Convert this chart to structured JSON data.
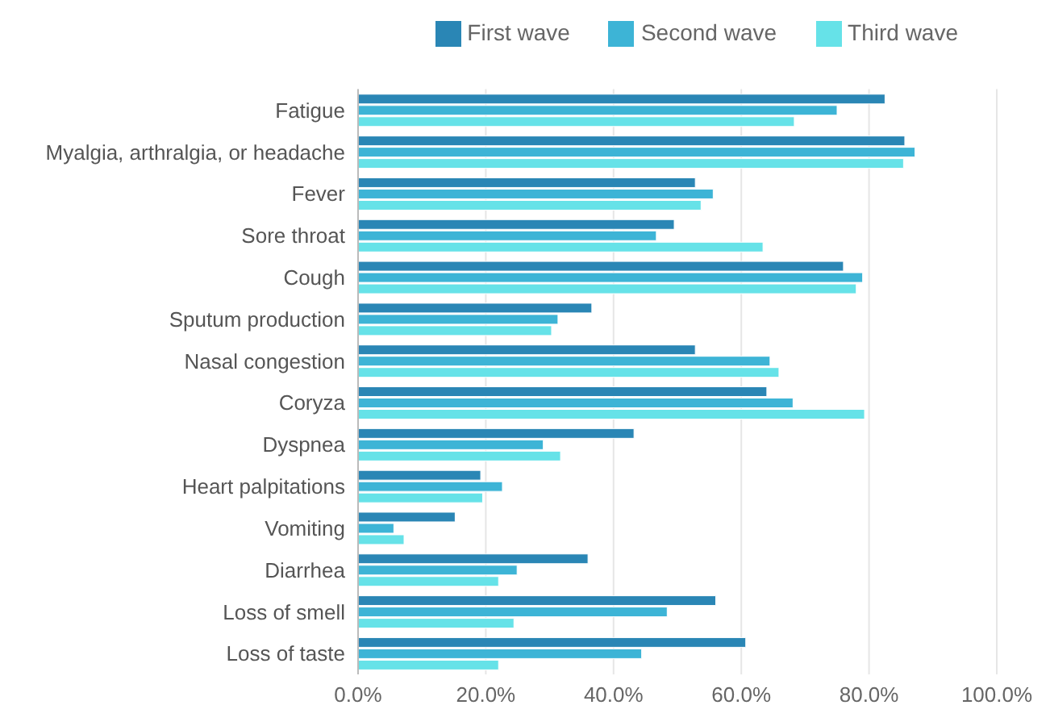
{
  "chart_data": {
    "type": "bar",
    "orientation": "horizontal",
    "categories": [
      "Fatigue",
      "Myalgia, arthralgia, or headache",
      "Fever",
      "Sore throat",
      "Cough",
      "Sputum production",
      "Nasal congestion",
      "Coryza",
      "Dyspnea",
      "Heart palpitations",
      "Vomiting",
      "Diarrhea",
      "Loss of smell",
      "Loss of taste"
    ],
    "series": [
      {
        "name": "First wave",
        "color": "#2a86b5",
        "values": [
          82.5,
          85.6,
          52.8,
          49.5,
          76.0,
          36.6,
          52.8,
          64.0,
          43.2,
          19.2,
          15.2,
          36.0,
          56.0,
          60.7
        ]
      },
      {
        "name": "Second wave",
        "color": "#3db4d6",
        "values": [
          75.0,
          87.2,
          55.6,
          46.7,
          79.0,
          31.3,
          64.5,
          68.1,
          29.0,
          22.6,
          5.6,
          24.9,
          48.4,
          44.4
        ]
      },
      {
        "name": "Third wave",
        "color": "#66e2e8",
        "values": [
          68.3,
          85.4,
          53.7,
          63.4,
          78.0,
          30.3,
          65.9,
          79.3,
          31.7,
          19.5,
          7.2,
          22.0,
          24.4,
          22.0
        ]
      }
    ],
    "xlim": [
      0,
      100
    ],
    "xticks": [
      {
        "value": 0,
        "label": "0.0%"
      },
      {
        "value": 20,
        "label": "20.0%"
      },
      {
        "value": 40,
        "label": "40.0%"
      },
      {
        "value": 60,
        "label": "60.0%"
      },
      {
        "value": 80,
        "label": "80.0%"
      },
      {
        "value": 100,
        "label": "100.0%"
      }
    ],
    "grid": "x",
    "legend": "top right"
  }
}
